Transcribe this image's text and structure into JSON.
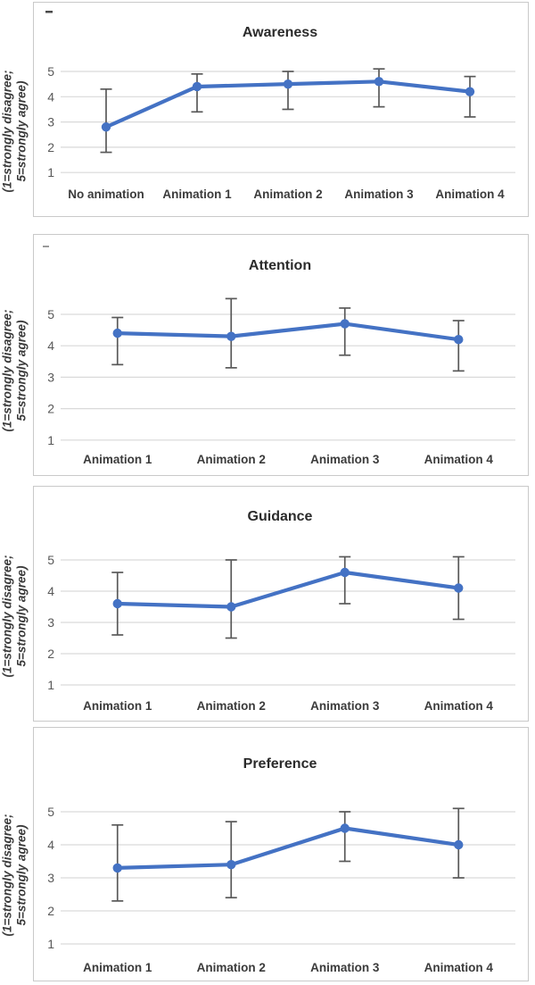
{
  "figure": {
    "background": "#ffffff"
  },
  "colors": {
    "line": "#4472C4",
    "marker": "#4472C4",
    "error_bar": "#595959",
    "gridline": "#D9D9D9",
    "panel_border": "#C9C9C9",
    "tick_label": "#595959",
    "category_label": "#3B3B3B",
    "title": "#2B2B2B",
    "axis_label": "#3B3B3B"
  },
  "y_axis_label": {
    "line1": "(1=strongly disagree;",
    "line2": "5=strongly agree)"
  },
  "chart_data": [
    {
      "type": "line",
      "title": "Awareness",
      "categories": [
        "No animation",
        "Animation 1",
        "Animation 2",
        "Animation 3",
        "Animation 4"
      ],
      "series": [
        {
          "values": [
            2.8,
            4.4,
            4.5,
            4.6,
            4.2
          ],
          "error_low": [
            1.8,
            3.4,
            3.5,
            3.6,
            3.2
          ],
          "error_high": [
            4.3,
            4.9,
            5.0,
            5.1,
            4.8
          ]
        }
      ],
      "y_ticks": [
        5,
        4,
        3,
        2,
        1
      ],
      "ylim": [
        1,
        5
      ],
      "ylabel": "(1=strongly disagree; 5=strongly agree)",
      "grid": true,
      "legend": false,
      "clipped_axis_artifact": true
    },
    {
      "type": "line",
      "title": "Attention",
      "categories": [
        "Animation 1",
        "Animation 2",
        "Animation 3",
        "Animation 4"
      ],
      "series": [
        {
          "values": [
            4.4,
            4.3,
            4.7,
            4.2
          ],
          "error_low": [
            3.4,
            3.3,
            3.7,
            3.2
          ],
          "error_high": [
            4.9,
            5.5,
            5.2,
            4.8
          ]
        }
      ],
      "y_ticks": [
        5,
        4,
        3,
        2,
        1
      ],
      "ylim": [
        1,
        5
      ],
      "ylabel": "(1=strongly disagree; 5=strongly agree)",
      "grid": true,
      "legend": false,
      "clipped_axis_artifact": true
    },
    {
      "type": "line",
      "title": "Guidance",
      "categories": [
        "Animation 1",
        "Animation 2",
        "Animation 3",
        "Animation 4"
      ],
      "series": [
        {
          "values": [
            3.6,
            3.5,
            4.6,
            4.1
          ],
          "error_low": [
            2.6,
            2.5,
            3.6,
            3.1
          ],
          "error_high": [
            4.6,
            5.0,
            5.1,
            5.1
          ]
        }
      ],
      "y_ticks": [
        5,
        4,
        3,
        2,
        1
      ],
      "ylim": [
        1,
        5
      ],
      "ylabel": "(1=strongly disagree; 5=strongly agree)",
      "grid": true,
      "legend": false,
      "clipped_axis_artifact": false
    },
    {
      "type": "line",
      "title": "Preference",
      "categories": [
        "Animation 1",
        "Animation 2",
        "Animation 3",
        "Animation 4"
      ],
      "series": [
        {
          "values": [
            3.3,
            3.4,
            4.5,
            4.0
          ],
          "error_low": [
            2.3,
            2.4,
            3.5,
            3.0
          ],
          "error_high": [
            4.6,
            4.7,
            5.0,
            5.1
          ]
        }
      ],
      "y_ticks": [
        5,
        4,
        3,
        2,
        1
      ],
      "ylim": [
        1,
        5
      ],
      "ylabel": "(1=strongly disagree; 5=strongly agree)",
      "grid": true,
      "legend": false,
      "clipped_axis_artifact": false
    }
  ]
}
